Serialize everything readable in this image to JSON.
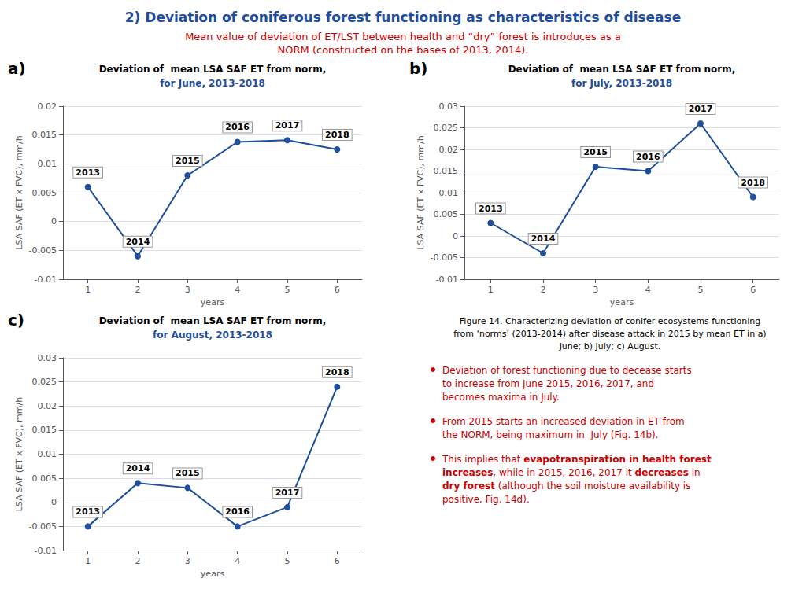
{
  "title": {
    "text": "2) Deviation of coniferous forest functioning as characteristics of disease",
    "color": "#1f4e9b"
  },
  "subtitle": {
    "text": "Mean value of deviation of ET/LST between health and “dry” forest is introduces as a\nNORM (constructed on the bases of 2013, 2014).",
    "color": "#cc0000"
  },
  "caption": "Figure 14. Characterizing deviation of conifer ecosystems functioning\nfrom ‘norms’ (2013-2014) after disease attack in 2015 by mean ET in a)\nJune; b) July; c) August.",
  "bullets": {
    "color": "#cc0000",
    "items": [
      [
        [
          {
            "text": "Deviation of forest functioning due to decease starts",
            "bold": false
          }
        ],
        [
          {
            "text": "to increase from June 2015, 2016, 2017, and",
            "bold": false
          }
        ],
        [
          {
            "text": "becomes maxima in July.",
            "bold": false
          }
        ]
      ],
      [
        [
          {
            "text": "From 2015 starts an increased deviation in ET from",
            "bold": false
          }
        ],
        [
          {
            "text": "the NORM, being maximum in  July (Fig. 14b).",
            "bold": false
          }
        ]
      ],
      [
        [
          {
            "text": "This implies that ",
            "bold": false
          },
          {
            "text": "evapotranspiration in health forest",
            "bold": true
          }
        ],
        [
          {
            "text": "increases",
            "bold": true
          },
          {
            "text": ", while in 2015, 2016, 2017 it ",
            "bold": false
          },
          {
            "text": "decreases",
            "bold": true
          },
          {
            "text": " in",
            "bold": false
          }
        ],
        [
          {
            "text": "dry forest",
            "bold": true
          },
          {
            "text": " (although the soil moisture availability is",
            "bold": false
          }
        ],
        [
          {
            "text": "positive, Fig. 14d).",
            "bold": false
          }
        ]
      ]
    ]
  },
  "chart_data": [
    {
      "type": "line",
      "panel": "a)",
      "title": "Deviation of  mean LSA SAF ET from norm,",
      "subtitle": {
        "text": "for June, 2013-2018",
        "color": "#1f4e9b"
      },
      "x": [
        1,
        2,
        3,
        4,
        5,
        6
      ],
      "values": [
        0.006,
        -0.006,
        0.008,
        0.0138,
        0.0141,
        0.0125
      ],
      "point_labels": [
        "2013",
        "2014",
        "2015",
        "2016",
        "2017",
        "2018"
      ],
      "color": "#1f4e9b",
      "xlabel": "years",
      "ylabel": "LSA SAF (ET x FVC), mm/h",
      "xlim": [
        0.5,
        6.5
      ],
      "xticks": [
        1,
        2,
        3,
        4,
        5,
        6
      ],
      "ylim": [
        -0.01,
        0.02
      ],
      "yticks": [
        -0.01,
        -0.005,
        0,
        0.005,
        0.01,
        0.015,
        0.02
      ],
      "grid": true
    },
    {
      "type": "line",
      "panel": "b)",
      "title": "Deviation of  mean LSA SAF ET from norm,",
      "subtitle": {
        "text": "for July, 2013-2018",
        "color": "#1f4e9b"
      },
      "x": [
        1,
        2,
        3,
        4,
        5,
        6
      ],
      "values": [
        0.003,
        -0.004,
        0.016,
        0.015,
        0.026,
        0.009
      ],
      "point_labels": [
        "2013",
        "2014",
        "2015",
        "2016",
        "2017",
        "2018"
      ],
      "color": "#1f4e9b",
      "xlabel": "years",
      "ylabel": "LSA SAF (ET x FVC), mm/h",
      "xlim": [
        0.5,
        6.5
      ],
      "xticks": [
        1,
        2,
        3,
        4,
        5,
        6
      ],
      "ylim": [
        -0.01,
        0.03
      ],
      "yticks": [
        -0.01,
        -0.005,
        0,
        0.005,
        0.01,
        0.015,
        0.02,
        0.025,
        0.03
      ],
      "grid": true
    },
    {
      "type": "line",
      "panel": "c)",
      "title": "Deviation of  mean LSA SAF ET from norm,",
      "subtitle": {
        "text": "for August, 2013-2018",
        "color": "#1f4e9b"
      },
      "x": [
        1,
        2,
        3,
        4,
        5,
        6
      ],
      "values": [
        -0.005,
        0.004,
        0.003,
        -0.005,
        -0.001,
        0.024
      ],
      "point_labels": [
        "2013",
        "2014",
        "2015",
        "2016",
        "2017",
        "2018"
      ],
      "color": "#1f4e9b",
      "xlabel": "years",
      "ylabel": "LSA SAF (ET x FVC), mm/h",
      "xlim": [
        0.5,
        6.5
      ],
      "xticks": [
        1,
        2,
        3,
        4,
        5,
        6
      ],
      "ylim": [
        -0.01,
        0.03
      ],
      "yticks": [
        -0.01,
        -0.005,
        0,
        0.005,
        0.01,
        0.015,
        0.02,
        0.025,
        0.03
      ],
      "grid": true
    }
  ]
}
